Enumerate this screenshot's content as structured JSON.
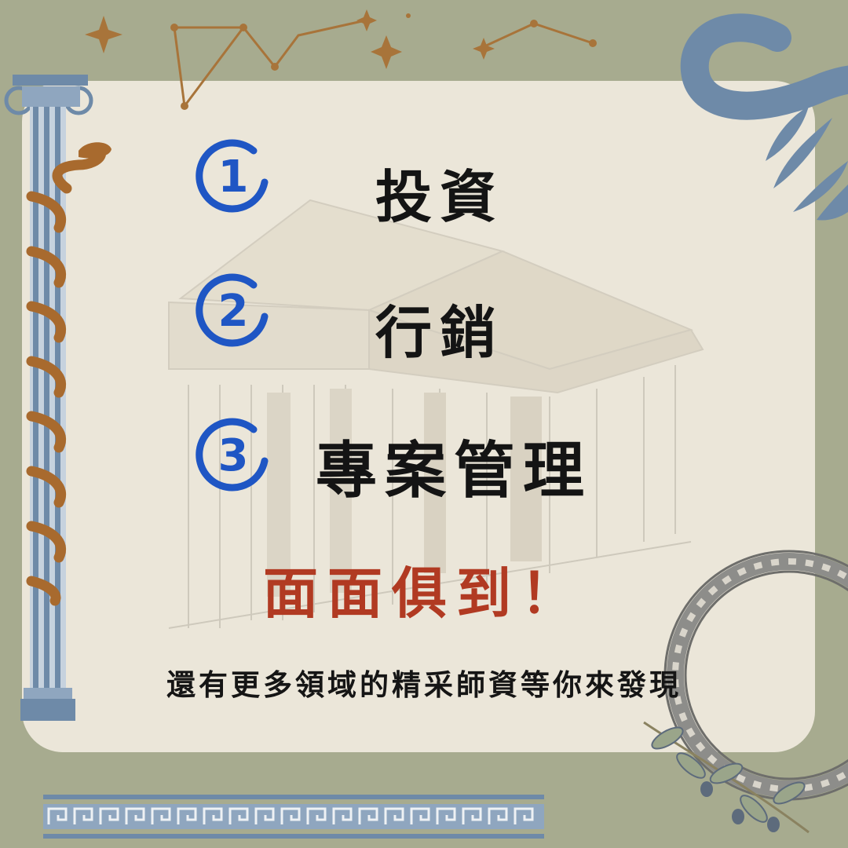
{
  "items": [
    {
      "number": "1",
      "label": "投資"
    },
    {
      "number": "2",
      "label": "行銷"
    },
    {
      "number": "3",
      "label": "專案管理"
    }
  ],
  "tagline": "面面俱到！",
  "footnote": "還有更多領域的精采師資等你來發現",
  "colors": {
    "background": "#a7ab8f",
    "card": "#ebe6d9",
    "number_circle": "#1f56c4",
    "label": "#141414",
    "tagline": "#b13a22",
    "column": "#6e8aa8",
    "snake": "#a86a2e",
    "star": "#a8743a",
    "pattern": "#7b93ae"
  },
  "icons": [
    "ionic-column-icon",
    "snake-icon",
    "temple-sketch-icon",
    "constellation-icon",
    "wave-swirl-icon",
    "greek-key-ring-icon",
    "olive-branch-icon",
    "greek-key-border-icon"
  ]
}
